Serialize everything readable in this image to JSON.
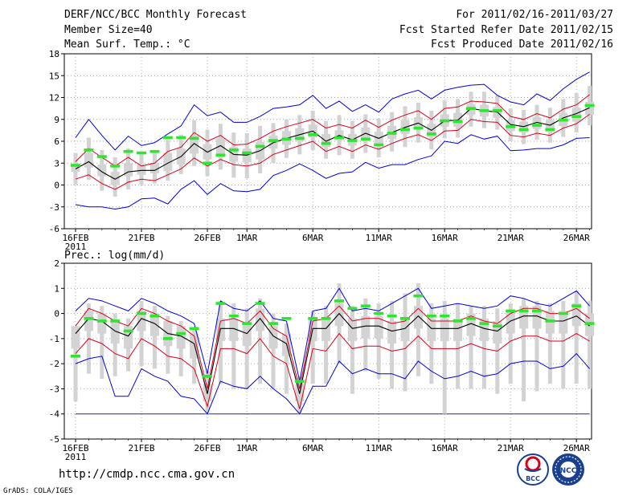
{
  "header": {
    "title": "DERF/NCC/BCC Monthly Forecast",
    "member_size": "Member Size=40",
    "variable": "Mean Surf. Temp.: °C",
    "period": "For 2011/02/16-2011/03/27",
    "refer_date": "Fcst Started Refer Date 2011/02/15",
    "produced_date": "Fcst Produced Date 2011/02/16"
  },
  "footer": {
    "url": "http://cmdp.ncc.cma.gov.cn",
    "credit": "GrADS: COLA/IGES",
    "logo_bcc_text": "BCC",
    "logo_ncc_text": "NCC"
  },
  "colors": {
    "box": "#d3d3d3",
    "median": "#2ee62e",
    "envelope_outer": "#0000d8",
    "envelope_inner": "#d8001a",
    "mean": "#000000",
    "grid": "#888888",
    "baseline": "#2a2a8c"
  },
  "chart_data": [
    {
      "type": "box-line",
      "title": "Mean Surf. Temp.: °C",
      "ylabel": "°C",
      "ylim": [
        -6,
        18
      ],
      "yticks": [
        -6,
        -3,
        0,
        3,
        6,
        9,
        12,
        15,
        18
      ],
      "xticks": [
        {
          "day": 0,
          "label": "16FEB"
        },
        {
          "day": 5,
          "label": "21FEB"
        },
        {
          "day": 10,
          "label": "26FEB"
        },
        {
          "day": 13,
          "label": "1MAR"
        },
        {
          "day": 18,
          "label": "6MAR"
        },
        {
          "day": 23,
          "label": "11MAR"
        },
        {
          "day": 28,
          "label": "16MAR"
        },
        {
          "day": 33,
          "label": "21MAR"
        },
        {
          "day": 38,
          "label": "26MAR"
        }
      ],
      "year_label": "2011",
      "days": [
        0,
        1,
        2,
        3,
        4,
        5,
        6,
        7,
        8,
        9,
        10,
        11,
        12,
        13,
        14,
        15,
        16,
        17,
        18,
        19,
        20,
        21,
        22,
        23,
        24,
        25,
        26,
        27,
        28,
        29,
        30,
        31,
        32,
        33,
        34,
        35,
        36,
        37,
        38,
        39
      ],
      "mean": [
        2.2,
        3.2,
        1.8,
        0.8,
        1.8,
        2.0,
        2.0,
        3.0,
        3.9,
        5.7,
        4.5,
        5.4,
        4.2,
        4.1,
        4.7,
        5.8,
        6.4,
        6.9,
        7.4,
        6.0,
        6.8,
        6.2,
        7.1,
        6.4,
        7.2,
        7.9,
        8.5,
        7.5,
        8.8,
        8.9,
        10.5,
        10.2,
        10.0,
        8.3,
        8.0,
        8.6,
        8.2,
        9.2,
        9.8,
        10.6
      ],
      "upper_inner": [
        3.2,
        5.0,
        3.8,
        2.6,
        3.8,
        2.6,
        3.0,
        4.6,
        5.2,
        7.2,
        6.0,
        6.8,
        5.5,
        5.6,
        6.4,
        7.4,
        8.0,
        8.5,
        9.0,
        7.8,
        8.3,
        7.8,
        8.9,
        7.9,
        8.9,
        9.6,
        10.2,
        9.0,
        10.5,
        10.7,
        11.5,
        11.4,
        11.2,
        9.4,
        9.0,
        9.8,
        9.2,
        10.4,
        11.0,
        12.4
      ],
      "lower_inner": [
        0.8,
        1.4,
        0.2,
        -0.6,
        0.4,
        0.8,
        0.6,
        1.4,
        2.2,
        3.7,
        2.6,
        3.5,
        2.8,
        2.6,
        3.0,
        4.2,
        4.8,
        5.4,
        6.0,
        4.6,
        5.3,
        4.6,
        5.5,
        4.9,
        5.7,
        6.4,
        6.9,
        6.1,
        7.4,
        7.5,
        9.0,
        8.7,
        8.6,
        6.8,
        6.6,
        7.1,
        6.8,
        7.8,
        8.4,
        9.7
      ],
      "upper_outer": [
        6.5,
        9.0,
        6.8,
        4.8,
        6.7,
        5.4,
        5.8,
        7.0,
        8.1,
        11.0,
        9.5,
        10.0,
        8.6,
        8.6,
        9.4,
        10.5,
        10.7,
        11.0,
        12.3,
        10.5,
        11.5,
        10.1,
        11.0,
        10.0,
        11.8,
        12.5,
        13.0,
        11.8,
        13.0,
        13.4,
        13.7,
        13.8,
        12.3,
        11.4,
        11.0,
        12.5,
        11.6,
        13.2,
        14.5,
        15.5
      ],
      "lower_outer": [
        -2.7,
        -3.0,
        -3.0,
        -3.3,
        -3.0,
        -1.9,
        -1.8,
        -2.6,
        -0.6,
        0.6,
        -1.3,
        0.2,
        -0.8,
        -0.9,
        -0.6,
        1.3,
        2.0,
        2.9,
        2.0,
        0.9,
        1.6,
        1.8,
        3.1,
        2.3,
        2.8,
        2.8,
        3.5,
        4.0,
        6.0,
        5.7,
        6.9,
        6.3,
        6.7,
        4.7,
        4.8,
        5.0,
        5.0,
        5.5,
        6.4,
        6.5
      ],
      "box_q1": [
        1.8,
        2.4,
        1.2,
        0.0,
        1.2,
        1.4,
        1.6,
        1.9,
        2.8,
        4.3,
        3.5,
        4.3,
        3.2,
        3.1,
        3.5,
        5.0,
        5.5,
        6.0,
        6.5,
        5.2,
        6.1,
        5.4,
        6.4,
        5.6,
        6.3,
        7.0,
        7.6,
        6.6,
        8.0,
        8.0,
        9.6,
        9.4,
        9.2,
        7.4,
        7.2,
        7.7,
        7.3,
        8.1,
        8.7,
        9.6
      ],
      "box_q3": [
        2.8,
        4.4,
        2.8,
        1.8,
        3.0,
        2.8,
        3.0,
        4.4,
        5.0,
        6.8,
        5.6,
        6.4,
        5.2,
        5.0,
        5.9,
        6.8,
        7.4,
        7.8,
        8.3,
        7.0,
        7.5,
        7.0,
        7.9,
        7.3,
        8.1,
        8.9,
        9.3,
        8.4,
        9.7,
        9.9,
        11.1,
        11.0,
        10.7,
        8.9,
        8.7,
        9.3,
        8.9,
        9.9,
        10.6,
        11.4
      ],
      "box_min": [
        0.0,
        0.7,
        -0.8,
        -1.6,
        -0.6,
        0.0,
        0.2,
        0.6,
        1.5,
        2.6,
        1.2,
        2.1,
        1.0,
        0.9,
        1.6,
        3.0,
        3.7,
        4.2,
        4.8,
        3.6,
        4.1,
        3.6,
        4.4,
        3.8,
        4.6,
        5.2,
        5.8,
        4.9,
        6.4,
        6.5,
        8.0,
        7.8,
        7.6,
        6.0,
        5.6,
        6.2,
        5.8,
        6.6,
        7.2,
        8.2
      ],
      "box_max": [
        4.4,
        6.5,
        4.8,
        3.8,
        5.0,
        4.4,
        4.6,
        6.2,
        6.9,
        8.9,
        7.6,
        8.4,
        7.2,
        7.1,
        8.1,
        8.5,
        9.0,
        9.6,
        10.2,
        8.8,
        9.6,
        8.8,
        9.7,
        9.1,
        10.0,
        10.8,
        11.3,
        10.2,
        11.6,
        11.8,
        12.8,
        12.8,
        12.3,
        10.5,
        10.3,
        11.0,
        10.6,
        11.8,
        12.6,
        13.6
      ],
      "median": [
        2.7,
        4.8,
        3.9,
        2.6,
        4.6,
        4.4,
        4.6,
        6.5,
        6.5,
        6.4,
        3.0,
        4.1,
        4.8,
        4.4,
        5.3,
        6.1,
        6.3,
        6.4,
        6.9,
        5.7,
        6.5,
        6.1,
        6.3,
        5.5,
        7.1,
        7.6,
        7.8,
        7.0,
        8.8,
        8.7,
        10.5,
        10.2,
        10.2,
        8.0,
        7.6,
        8.2,
        7.6,
        8.9,
        9.4,
        10.9
      ]
    },
    {
      "type": "box-line",
      "title": "Prec.: log(mm/d)",
      "ylabel": "log(mm/d)",
      "ylim": [
        -5,
        2
      ],
      "yticks": [
        -5,
        -4,
        -3,
        -2,
        -1,
        0,
        1,
        2
      ],
      "xticks": [
        {
          "day": 0,
          "label": "16FEB"
        },
        {
          "day": 5,
          "label": "21FEB"
        },
        {
          "day": 10,
          "label": "26FEB"
        },
        {
          "day": 13,
          "label": "1MAR"
        },
        {
          "day": 18,
          "label": "6MAR"
        },
        {
          "day": 23,
          "label": "11MAR"
        },
        {
          "day": 28,
          "label": "16MAR"
        },
        {
          "day": 33,
          "label": "21MAR"
        },
        {
          "day": 38,
          "label": "26MAR"
        }
      ],
      "year_label": "2011",
      "baseline": -4,
      "days": [
        0,
        1,
        2,
        3,
        4,
        5,
        6,
        7,
        8,
        9,
        10,
        11,
        12,
        13,
        14,
        15,
        16,
        17,
        18,
        19,
        20,
        21,
        22,
        23,
        24,
        25,
        26,
        27,
        28,
        29,
        30,
        31,
        32,
        33,
        34,
        35,
        36,
        37,
        38,
        39
      ],
      "mean": [
        -0.8,
        -0.2,
        -0.3,
        -0.7,
        -0.9,
        -0.2,
        -0.4,
        -0.8,
        -0.9,
        -1.2,
        -3.2,
        -0.6,
        -0.6,
        -0.8,
        -0.2,
        -0.9,
        -1.2,
        -3.2,
        -0.6,
        -0.6,
        0.0,
        -0.6,
        -0.5,
        -0.5,
        -0.7,
        -0.6,
        -0.1,
        -0.6,
        -0.6,
        -0.6,
        -0.4,
        -0.6,
        -0.7,
        -0.3,
        -0.1,
        -0.1,
        -0.3,
        -0.3,
        -0.1,
        -0.5
      ],
      "upper_inner": [
        -0.5,
        0.2,
        0.0,
        -0.3,
        -0.5,
        0.2,
        0.0,
        -0.3,
        -0.5,
        -0.9,
        -3.0,
        -0.3,
        -0.2,
        -0.4,
        0.1,
        -0.6,
        -0.9,
        -3.0,
        -0.3,
        -0.2,
        0.3,
        -0.3,
        -0.2,
        -0.2,
        -0.4,
        -0.3,
        0.2,
        -0.3,
        -0.3,
        -0.3,
        -0.1,
        -0.3,
        -0.4,
        0.0,
        0.2,
        0.2,
        0.0,
        0.0,
        0.2,
        -0.2
      ],
      "lower_inner": [
        -1.6,
        -1.0,
        -1.2,
        -1.6,
        -1.8,
        -1.0,
        -1.3,
        -1.7,
        -1.8,
        -2.2,
        -3.7,
        -1.4,
        -1.4,
        -1.6,
        -1.0,
        -1.7,
        -2.0,
        -3.8,
        -1.4,
        -1.5,
        -0.8,
        -1.4,
        -1.3,
        -1.3,
        -1.5,
        -1.4,
        -0.9,
        -1.4,
        -1.4,
        -1.4,
        -1.2,
        -1.4,
        -1.5,
        -1.1,
        -0.9,
        -0.9,
        -1.1,
        -1.1,
        -0.8,
        -1.1
      ],
      "upper_outer": [
        0.1,
        0.6,
        0.5,
        0.3,
        0.1,
        0.6,
        0.4,
        0.1,
        -0.1,
        -0.4,
        -2.4,
        0.5,
        0.2,
        0.1,
        0.5,
        -0.2,
        -0.3,
        -2.7,
        0.1,
        0.2,
        1.0,
        0.1,
        0.2,
        0.1,
        0.4,
        0.7,
        1.0,
        0.2,
        0.3,
        0.4,
        0.3,
        0.2,
        0.3,
        0.7,
        0.6,
        0.4,
        0.3,
        0.6,
        0.9,
        0.3
      ],
      "lower_outer": [
        -2.0,
        -1.8,
        -1.7,
        -3.3,
        -3.3,
        -2.2,
        -2.5,
        -2.7,
        -3.3,
        -3.4,
        -4.0,
        -2.7,
        -2.9,
        -3.0,
        -2.5,
        -3.0,
        -3.4,
        -4.0,
        -2.9,
        -2.9,
        -1.9,
        -2.4,
        -2.2,
        -2.4,
        -2.4,
        -2.6,
        -1.9,
        -2.3,
        -2.6,
        -2.5,
        -2.3,
        -2.5,
        -2.4,
        -2.0,
        -1.9,
        -1.9,
        -2.2,
        -2.1,
        -1.6,
        -2.2
      ],
      "box_q1": [
        -1.4,
        -0.7,
        -0.8,
        -1.2,
        -1.4,
        -0.7,
        -0.9,
        -1.3,
        -1.4,
        -1.8,
        -3.5,
        -1.1,
        -1.1,
        -1.3,
        -0.7,
        -1.4,
        -1.7,
        -3.5,
        -1.1,
        -1.1,
        -0.5,
        -1.1,
        -1.0,
        -1.0,
        -1.2,
        -1.1,
        -0.6,
        -1.1,
        -1.1,
        -1.1,
        -0.9,
        -1.1,
        -1.2,
        -0.8,
        -0.6,
        -0.6,
        -0.8,
        -0.8,
        -0.5,
        -0.9
      ],
      "box_q3": [
        -0.5,
        0.1,
        0.0,
        -0.3,
        -0.5,
        0.1,
        0.0,
        -0.3,
        -0.5,
        -0.8,
        -2.8,
        -0.2,
        -0.2,
        -0.4,
        0.2,
        -0.5,
        -0.8,
        -2.8,
        -0.2,
        -0.2,
        0.4,
        -0.2,
        -0.1,
        -0.1,
        -0.3,
        -0.2,
        0.3,
        -0.2,
        -0.2,
        -0.2,
        0.0,
        -0.2,
        -0.3,
        0.1,
        0.3,
        0.3,
        0.1,
        0.1,
        0.4,
        0.0
      ],
      "box_min": [
        -3.5,
        -2.4,
        -2.6,
        -2.5,
        -2.3,
        -2.1,
        -2.2,
        -2.4,
        -2.5,
        -2.8,
        -4.0,
        -2.8,
        -3.0,
        -3.0,
        -2.8,
        -3.0,
        -3.2,
        -4.0,
        -2.8,
        -2.8,
        -2.0,
        -3.2,
        -2.3,
        -2.6,
        -3.0,
        -3.1,
        -2.5,
        -2.8,
        -4.0,
        -3.0,
        -3.0,
        -3.0,
        -3.2,
        -2.8,
        -3.5,
        -3.1,
        -2.8,
        -3.0,
        -2.8,
        -3.0
      ],
      "box_max": [
        -1.3,
        0.4,
        0.3,
        0.0,
        -0.2,
        0.5,
        0.3,
        -0.1,
        -0.3,
        -0.6,
        -2.3,
        0.5,
        0.4,
        0.2,
        0.6,
        0.0,
        -0.4,
        -2.5,
        0.1,
        0.3,
        1.2,
        0.3,
        0.6,
        0.4,
        0.5,
        0.8,
        1.2,
        0.4,
        0.5,
        0.4,
        0.3,
        0.3,
        0.2,
        0.4,
        0.6,
        0.5,
        0.4,
        0.5,
        0.9,
        0.5
      ],
      "median": [
        -1.7,
        -0.2,
        -0.3,
        -0.3,
        -0.7,
        0.0,
        -0.1,
        -1.0,
        -0.8,
        -0.6,
        -2.5,
        0.4,
        -0.1,
        -0.4,
        0.4,
        -0.4,
        -0.2,
        -2.7,
        -0.2,
        -0.2,
        0.5,
        0.2,
        0.3,
        0.0,
        -0.1,
        -0.2,
        0.7,
        -0.1,
        -0.1,
        -0.3,
        -0.2,
        -0.4,
        -0.5,
        0.1,
        0.1,
        0.1,
        -0.3,
        0.0,
        0.3,
        -0.4
      ]
    }
  ]
}
